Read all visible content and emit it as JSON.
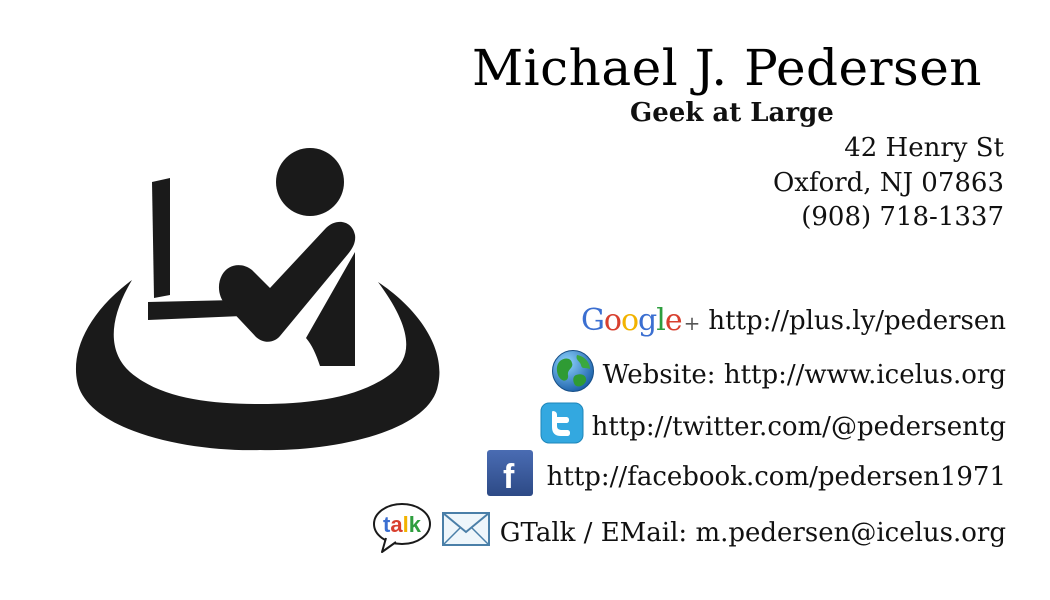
{
  "card": {
    "name": "Michael J. Pedersen",
    "tagline": "Geek at Large",
    "address": {
      "street": "42 Henry St",
      "city": "Oxford, NJ 07863",
      "phone": "(908) 718-1337"
    }
  },
  "contacts": {
    "google": {
      "icon": "google-plus-icon",
      "logo_letters": [
        "G",
        "o",
        "o",
        "g",
        "l",
        "e"
      ],
      "logo_colors": [
        "#3b6fd1",
        "#d8402f",
        "#f2b300",
        "#3b6fd1",
        "#2e9e3e",
        "#d8402f"
      ],
      "logo_plus": "+",
      "text": "http://plus.ly/pedersen"
    },
    "website": {
      "icon": "globe-icon",
      "text": "Website: http://www.icelus.org"
    },
    "twitter": {
      "icon": "twitter-icon",
      "text": "http://twitter.com/@pedersentg"
    },
    "facebook": {
      "icon": "facebook-icon",
      "logo_letter": "f",
      "text": "http://facebook.com/pedersen1971"
    },
    "gtalk": {
      "icon": "gtalk-icon",
      "logo_text": "talk",
      "mail_icon": "envelope-icon",
      "text": "GTalk / EMail: m.pedersen@icelus.org"
    }
  },
  "colors": {
    "text": "#111111",
    "logo": "#1a1a1a",
    "twitter": "#33a8e0",
    "facebook": "#3b5998"
  }
}
